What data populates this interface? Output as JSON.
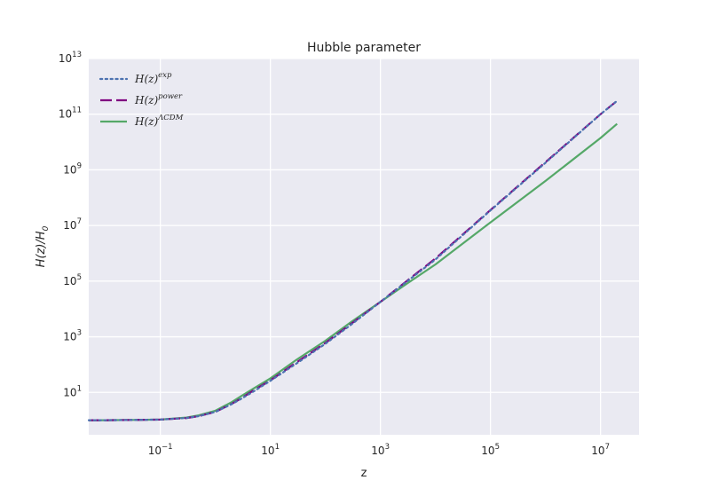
{
  "chart_data": {
    "type": "line",
    "title": "Hubble parameter",
    "xlabel": "z",
    "ylabel": {
      "main": "H(z)/H",
      "sub": "0"
    },
    "xscale": "log",
    "yscale": "log",
    "xlim": [
      0.005,
      50000000
    ],
    "ylim": [
      0.3,
      10000000000000
    ],
    "xticks": [
      {
        "base": "10",
        "exp": "−1",
        "value": 0.1
      },
      {
        "base": "10",
        "exp": "1",
        "value": 10
      },
      {
        "base": "10",
        "exp": "3",
        "value": 1000
      },
      {
        "base": "10",
        "exp": "5",
        "value": 100000
      },
      {
        "base": "10",
        "exp": "7",
        "value": 10000000
      }
    ],
    "yticks": [
      {
        "base": "10",
        "exp": "1",
        "value": 10
      },
      {
        "base": "10",
        "exp": "3",
        "value": 1000
      },
      {
        "base": "10",
        "exp": "5",
        "value": 100000
      },
      {
        "base": "10",
        "exp": "7",
        "value": 10000000
      },
      {
        "base": "10",
        "exp": "9",
        "value": 1000000000
      },
      {
        "base": "10",
        "exp": "11",
        "value": 100000000000
      },
      {
        "base": "10",
        "exp": "13",
        "value": 10000000000000
      }
    ],
    "grid": true,
    "legend_position": "top-left",
    "series": [
      {
        "name": {
          "main": "H(z)",
          "sup": "exp"
        },
        "color": "#4c72b0",
        "style": "dotted",
        "x": [
          0.005,
          0.01,
          0.03,
          0.1,
          0.3,
          0.5,
          1,
          2,
          3,
          5,
          10,
          30,
          100,
          300,
          1000,
          3000,
          10000,
          100000,
          1000000,
          10000000,
          20000000
        ],
        "y": [
          1.0,
          1.0,
          1.02,
          1.05,
          1.2,
          1.4,
          2.0,
          3.8,
          6.0,
          11,
          26,
          110,
          560,
          2800,
          18000,
          95000,
          600000,
          35000000,
          1800000000,
          100000000000,
          300000000000
        ]
      },
      {
        "name": {
          "main": "H(z)",
          "sup": "power"
        },
        "color": "#800080",
        "style": "dashed",
        "x": [
          0.005,
          0.01,
          0.03,
          0.1,
          0.3,
          0.5,
          1,
          2,
          3,
          5,
          10,
          30,
          100,
          300,
          1000,
          3000,
          10000,
          100000,
          1000000,
          10000000,
          20000000
        ],
        "y": [
          1.0,
          1.0,
          1.02,
          1.05,
          1.2,
          1.4,
          2.0,
          3.9,
          6.2,
          12,
          27,
          120,
          600,
          3000,
          18000,
          100000,
          650000,
          36000000,
          1900000000,
          100000000000,
          300000000000
        ]
      },
      {
        "name": {
          "main": "H(z)",
          "sup": "ΛCDM"
        },
        "color": "#55a868",
        "style": "solid",
        "x": [
          0.005,
          0.01,
          0.03,
          0.1,
          0.3,
          0.5,
          1,
          2,
          3,
          5,
          10,
          30,
          100,
          300,
          1000,
          3000,
          10000,
          100000,
          1000000,
          10000000,
          20000000
        ],
        "y": [
          1.0,
          1.0,
          1.02,
          1.05,
          1.25,
          1.5,
          2.2,
          4.5,
          7.5,
          14,
          32,
          150,
          720,
          3500,
          18000,
          80000,
          400000,
          13000000,
          400000000,
          14000000000,
          45000000000
        ]
      }
    ]
  }
}
